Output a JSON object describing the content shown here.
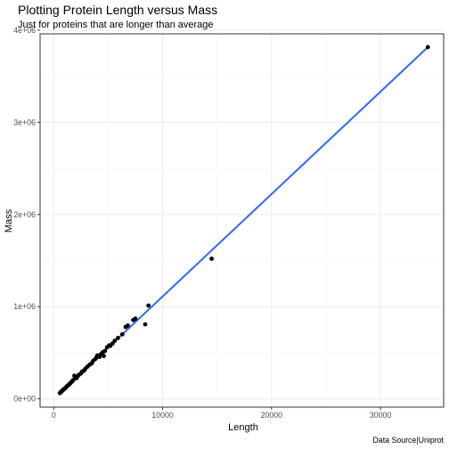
{
  "chart_data": {
    "type": "scatter",
    "title": "Plotting Protein Length versus Mass",
    "subtitle": "Just for proteins that are longer than average",
    "xlabel": "Length",
    "ylabel": "Mass",
    "caption": "Data Source|Uniprot",
    "xlim": [
      -1250,
      35800
    ],
    "ylim": [
      -90000,
      3960000
    ],
    "xticks": [
      0,
      10000,
      20000,
      30000
    ],
    "xtick_labels": [
      "0",
      "10000",
      "20000",
      "30000"
    ],
    "yticks": [
      0,
      1000000,
      2000000,
      3000000,
      4000000
    ],
    "ytick_labels": [
      "0e+00",
      "1e+06",
      "2e+06",
      "3e+06",
      "4e+06"
    ],
    "grid": true,
    "colors": {
      "points": "#000000",
      "fit_line": "#3366ff",
      "panel_border": "#333333",
      "grid_major": "#ebebeb",
      "grid_minor": "#f4f4f4"
    },
    "series": [
      {
        "points": [
          [
            34350,
            3816000
          ],
          [
            14500,
            1520000
          ],
          [
            8700,
            1012000
          ],
          [
            8400,
            808000
          ],
          [
            7500,
            870000
          ],
          [
            7300,
            855000
          ],
          [
            6800,
            795000
          ],
          [
            6600,
            780000
          ],
          [
            6300,
            700000
          ],
          [
            5900,
            660000
          ],
          [
            5600,
            630000
          ],
          [
            5400,
            600000
          ],
          [
            5100,
            580000
          ],
          [
            4900,
            560000
          ],
          [
            4700,
            520000
          ],
          [
            4500,
            505000
          ],
          [
            4300,
            480000
          ],
          [
            4200,
            455000
          ],
          [
            4000,
            470000
          ],
          [
            3800,
            430000
          ],
          [
            3600,
            410000
          ],
          [
            3500,
            385000
          ],
          [
            3300,
            370000
          ],
          [
            3100,
            350000
          ],
          [
            2900,
            325000
          ],
          [
            2800,
            310000
          ],
          [
            2600,
            295000
          ],
          [
            2500,
            275000
          ],
          [
            2300,
            260000
          ],
          [
            2200,
            245000
          ],
          [
            2000,
            230000
          ],
          [
            1900,
            250000
          ],
          [
            1800,
            205000
          ],
          [
            1700,
            190000
          ],
          [
            1600,
            180000
          ],
          [
            1500,
            165000
          ],
          [
            1400,
            155000
          ],
          [
            1300,
            145000
          ],
          [
            1200,
            135000
          ],
          [
            1100,
            120000
          ],
          [
            1000,
            110000
          ],
          [
            950,
            105000
          ],
          [
            900,
            100000
          ],
          [
            850,
            95000
          ],
          [
            800,
            90000
          ],
          [
            750,
            85000
          ],
          [
            700,
            78000
          ],
          [
            650,
            72000
          ],
          [
            600,
            66000
          ],
          [
            560,
            62000
          ],
          [
            4600,
            465000
          ],
          [
            3900,
            445000
          ],
          [
            2700,
            300000
          ],
          [
            2100,
            225000
          ],
          [
            5200,
            575000
          ],
          [
            4400,
            490000
          ]
        ]
      }
    ],
    "fit_line": {
      "x": [
        560,
        34350
      ],
      "y": [
        62000,
        3816000
      ]
    }
  }
}
